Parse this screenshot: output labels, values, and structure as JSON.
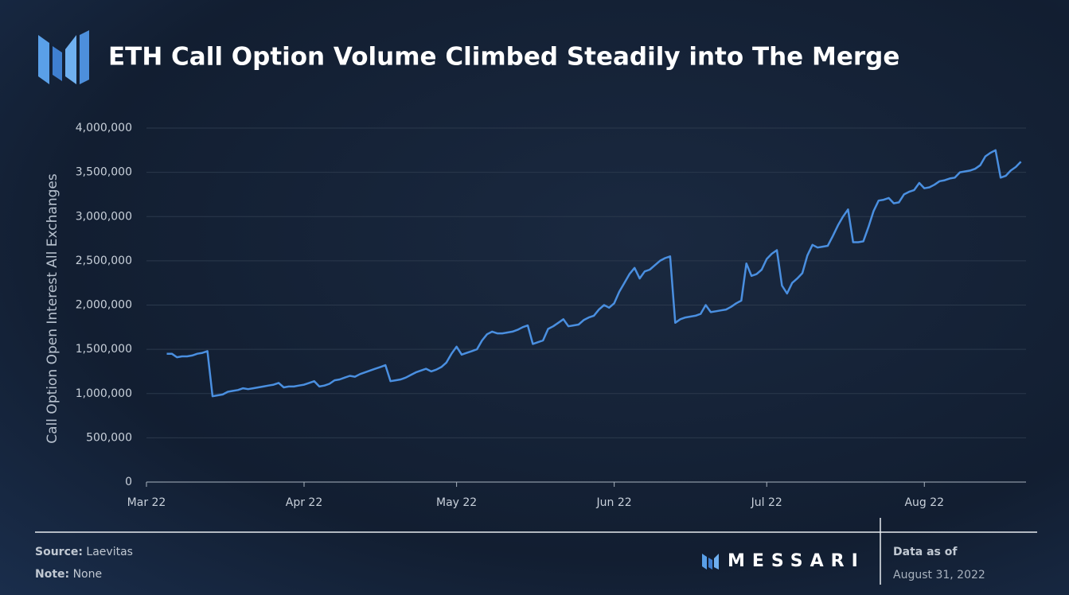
{
  "chart_data": {
    "type": "line",
    "step": true,
    "title": "ETH Call Option Volume Climbed Steadily into The Merge",
    "y_label": "Call Option Open Interest All Exchanges",
    "categories": [
      "Mar 22",
      null,
      null,
      null,
      null,
      null,
      null,
      null,
      null,
      null,
      null,
      null,
      null,
      null,
      null,
      null,
      null,
      null,
      null,
      null,
      null,
      null,
      null,
      null,
      null,
      null,
      null,
      null,
      null,
      null,
      null,
      "Apr 22",
      null,
      null,
      null,
      null,
      null,
      null,
      null,
      null,
      null,
      null,
      null,
      null,
      null,
      null,
      null,
      null,
      null,
      null,
      null,
      null,
      null,
      null,
      null,
      null,
      null,
      null,
      null,
      null,
      null,
      "May 22",
      null,
      null,
      null,
      null,
      null,
      null,
      null,
      null,
      null,
      null,
      null,
      null,
      null,
      null,
      null,
      null,
      null,
      null,
      null,
      null,
      null,
      null,
      null,
      null,
      null,
      null,
      null,
      null,
      null,
      null,
      "Jun 22",
      null,
      null,
      null,
      null,
      null,
      null,
      null,
      null,
      null,
      null,
      null,
      null,
      null,
      null,
      null,
      null,
      null,
      null,
      null,
      null,
      null,
      null,
      null,
      null,
      null,
      null,
      null,
      null,
      null,
      "Jul 22",
      null,
      null,
      null,
      null,
      null,
      null,
      null,
      null,
      null,
      null,
      null,
      null,
      null,
      null,
      null,
      null,
      null,
      null,
      null,
      null,
      null,
      null,
      null,
      null,
      null,
      null,
      null,
      null,
      null,
      null,
      "Aug 22",
      null,
      null,
      null,
      null,
      null,
      null,
      null,
      null,
      null,
      null,
      null,
      null,
      null,
      null,
      null,
      null,
      null,
      null,
      null
    ],
    "series": [
      {
        "name": "Call Option Open Interest",
        "color": "#4a8fe0",
        "values": [
          null,
          null,
          null,
          null,
          1450000,
          1450000,
          1410000,
          1420000,
          1420000,
          1430000,
          1450000,
          1460000,
          1480000,
          970000,
          980000,
          990000,
          1020000,
          1030000,
          1040000,
          1060000,
          1050000,
          1060000,
          1070000,
          1080000,
          1090000,
          1100000,
          1120000,
          1070000,
          1080000,
          1080000,
          1090000,
          1100000,
          1120000,
          1140000,
          1080000,
          1090000,
          1110000,
          1150000,
          1160000,
          1180000,
          1200000,
          1190000,
          1220000,
          1240000,
          1260000,
          1280000,
          1300000,
          1320000,
          1140000,
          1150000,
          1160000,
          1180000,
          1210000,
          1240000,
          1260000,
          1280000,
          1250000,
          1270000,
          1300000,
          1350000,
          1450000,
          1530000,
          1440000,
          1460000,
          1480000,
          1500000,
          1600000,
          1670000,
          1700000,
          1680000,
          1680000,
          1690000,
          1700000,
          1720000,
          1750000,
          1770000,
          1560000,
          1580000,
          1600000,
          1730000,
          1760000,
          1800000,
          1840000,
          1760000,
          1770000,
          1780000,
          1830000,
          1860000,
          1880000,
          1950000,
          2000000,
          1970000,
          2020000,
          2150000,
          2250000,
          2350000,
          2420000,
          2300000,
          2380000,
          2400000,
          2450000,
          2500000,
          2530000,
          2550000,
          1800000,
          1840000,
          1860000,
          1870000,
          1880000,
          1900000,
          2000000,
          1920000,
          1930000,
          1940000,
          1950000,
          1980000,
          2020000,
          2050000,
          2470000,
          2330000,
          2350000,
          2400000,
          2520000,
          2580000,
          2620000,
          2220000,
          2130000,
          2250000,
          2300000,
          2360000,
          2560000,
          2680000,
          2650000,
          2660000,
          2670000,
          2780000,
          2900000,
          3000000,
          3080000,
          2710000,
          2710000,
          2720000,
          2880000,
          3060000,
          3180000,
          3190000,
          3210000,
          3150000,
          3160000,
          3250000,
          3280000,
          3300000,
          3380000,
          3320000,
          3330000,
          3360000,
          3400000,
          3410000,
          3430000,
          3440000,
          3500000,
          3510000,
          3520000,
          3540000,
          3580000,
          3680000,
          3720000,
          3750000,
          3440000,
          3460000,
          3520000,
          3560000,
          3620000
        ]
      }
    ],
    "ylim": [
      0,
      4000000
    ],
    "yticks": [
      0,
      {
        "value": 500000,
        "label": "500,000"
      },
      {
        "value": 1000000,
        "label": "1,000,000"
      },
      {
        "value": 1500000,
        "label": "1,500,000"
      },
      {
        "value": 2000000,
        "label": "2,000,000"
      },
      {
        "value": 2500000,
        "label": "2,500,000"
      },
      {
        "value": 3000000,
        "label": "3,000,000"
      },
      {
        "value": 3500000,
        "label": "3,500,000"
      },
      {
        "value": 4000000,
        "label": "4,000,000"
      }
    ],
    "grid": true
  },
  "footer": {
    "source_label": "Source:",
    "source": "Laevitas",
    "note_label": "Note:",
    "note": "None",
    "brand": "MESSARI",
    "data_as_of_label": "Data as of",
    "data_as_of": "August 31, 2022"
  }
}
